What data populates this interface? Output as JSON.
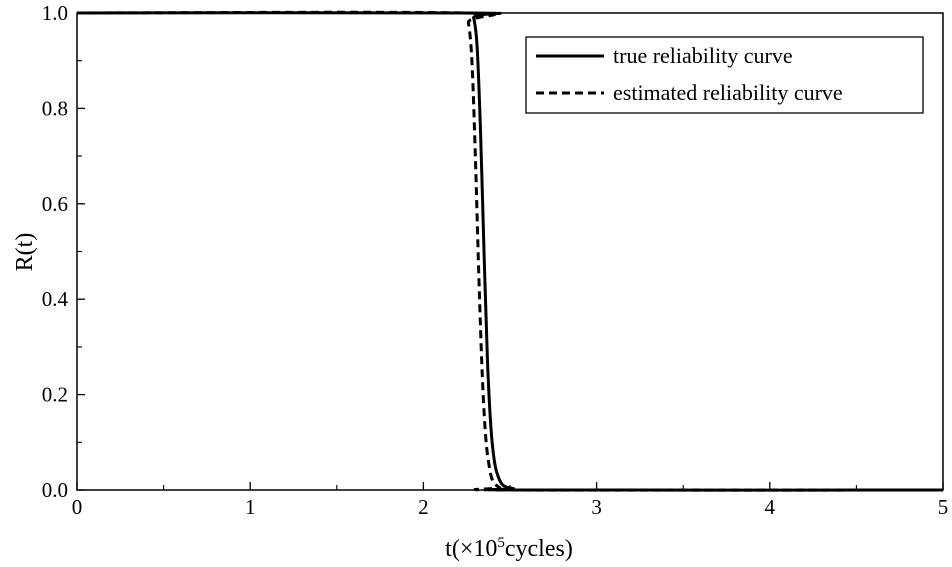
{
  "chart_data": {
    "type": "line",
    "xlabel": "t(×10⁵cycles)",
    "xlabel_parts": {
      "prefix": "t(×10",
      "superscript": "5",
      "suffix": "cycles)"
    },
    "ylabel": "R(t)",
    "xlim": [
      0,
      5
    ],
    "ylim": [
      0,
      1
    ],
    "x_ticks": [
      "0",
      "1",
      "2",
      "3",
      "4",
      "5"
    ],
    "y_ticks": [
      "0.0",
      "0.2",
      "0.4",
      "0.6",
      "0.8",
      "1.0"
    ],
    "grid": false,
    "legend_position": "top-right",
    "series": [
      {
        "name": "true reliability curve",
        "line_style": "solid",
        "color": "#000000",
        "points": [
          [
            0,
            1.0
          ],
          [
            2.27,
            1.0
          ],
          [
            2.29,
            0.99
          ],
          [
            2.31,
            0.93
          ],
          [
            2.33,
            0.75
          ],
          [
            2.35,
            0.5
          ],
          [
            2.37,
            0.27
          ],
          [
            2.39,
            0.13
          ],
          [
            2.41,
            0.06
          ],
          [
            2.43,
            0.03
          ],
          [
            2.46,
            0.01
          ],
          [
            2.52,
            0.003
          ],
          [
            2.6,
            0.0
          ],
          [
            5.0,
            0.0
          ]
        ]
      },
      {
        "name": "estimated reliability curve",
        "line_style": "dashed",
        "color": "#000000",
        "points": [
          [
            0,
            1.0
          ],
          [
            2.24,
            1.0
          ],
          [
            2.26,
            0.98
          ],
          [
            2.28,
            0.9
          ],
          [
            2.3,
            0.7
          ],
          [
            2.32,
            0.45
          ],
          [
            2.34,
            0.24
          ],
          [
            2.36,
            0.11
          ],
          [
            2.38,
            0.05
          ],
          [
            2.4,
            0.02
          ],
          [
            2.44,
            0.005
          ],
          [
            2.5,
            0.0
          ],
          [
            5.0,
            0.0
          ]
        ]
      }
    ]
  }
}
